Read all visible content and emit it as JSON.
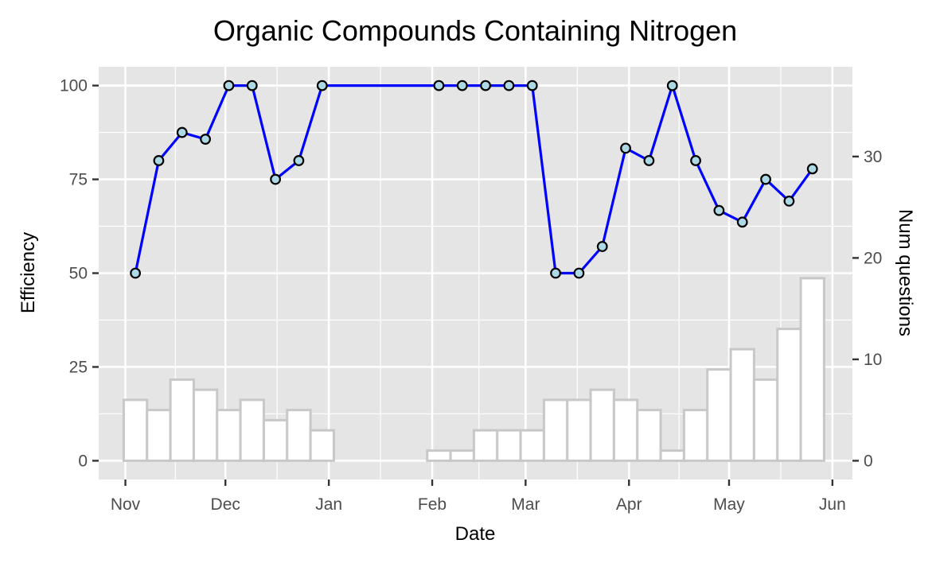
{
  "chart_data": {
    "type": "line+bar",
    "title": "Organic Compounds Containing Nitrogen",
    "xlabel": "Date",
    "ylabel_left": "Efficiency",
    "ylabel_right": "Num questions",
    "x_ticks": [
      "Nov",
      "Dec",
      "Jan",
      "Feb",
      "Mar",
      "Apr",
      "May",
      "Jun"
    ],
    "x_tick_dates": [
      "2016-11-01",
      "2016-12-01",
      "2017-01-01",
      "2017-02-01",
      "2017-03-01",
      "2017-04-01",
      "2017-05-01",
      "2017-06-01"
    ],
    "x_range": [
      "2016-10-24",
      "2017-06-07"
    ],
    "y_left_ticks": [
      0,
      25,
      50,
      75,
      100
    ],
    "y_left_range": [
      -5,
      105
    ],
    "y_right_ticks": [
      0,
      10,
      20,
      30
    ],
    "y_right_range": [
      -1.85,
      38.85
    ],
    "grid": true,
    "colors": {
      "panel": "#e5e5e5",
      "grid": "#ffffff",
      "line": "#0000ff",
      "point_fill": "#add8e6",
      "point_stroke": "#000000",
      "bar_fill": "#ffffff",
      "bar_stroke": "#c8c8c8"
    },
    "series": [
      {
        "type": "line",
        "axis": "left",
        "points": [
          {
            "x": "2016-11-04",
            "y": 50
          },
          {
            "x": "2016-11-11",
            "y": 80
          },
          {
            "x": "2016-11-18",
            "y": 87.5
          },
          {
            "x": "2016-11-25",
            "y": 85.7
          },
          {
            "x": "2016-12-02",
            "y": 100
          },
          {
            "x": "2016-12-09",
            "y": 100
          },
          {
            "x": "2016-12-16",
            "y": 75
          },
          {
            "x": "2016-12-23",
            "y": 80
          },
          {
            "x": "2016-12-30",
            "y": 100
          },
          {
            "x": "2017-02-03",
            "y": 100
          },
          {
            "x": "2017-02-10",
            "y": 100
          },
          {
            "x": "2017-02-17",
            "y": 100
          },
          {
            "x": "2017-02-24",
            "y": 100
          },
          {
            "x": "2017-03-03",
            "y": 100
          },
          {
            "x": "2017-03-10",
            "y": 50
          },
          {
            "x": "2017-03-17",
            "y": 50
          },
          {
            "x": "2017-03-24",
            "y": 57.1
          },
          {
            "x": "2017-03-31",
            "y": 83.3
          },
          {
            "x": "2017-04-07",
            "y": 80
          },
          {
            "x": "2017-04-14",
            "y": 100
          },
          {
            "x": "2017-04-21",
            "y": 80
          },
          {
            "x": "2017-04-28",
            "y": 66.7
          },
          {
            "x": "2017-05-05",
            "y": 63.6
          },
          {
            "x": "2017-05-12",
            "y": 75
          },
          {
            "x": "2017-05-19",
            "y": 69.2
          },
          {
            "x": "2017-05-26",
            "y": 77.8
          }
        ]
      },
      {
        "type": "bar",
        "axis": "right",
        "points": [
          {
            "x": "2016-11-04",
            "y": 6
          },
          {
            "x": "2016-11-11",
            "y": 5
          },
          {
            "x": "2016-11-18",
            "y": 8
          },
          {
            "x": "2016-11-25",
            "y": 7
          },
          {
            "x": "2016-12-02",
            "y": 5
          },
          {
            "x": "2016-12-09",
            "y": 6
          },
          {
            "x": "2016-12-16",
            "y": 4
          },
          {
            "x": "2016-12-23",
            "y": 5
          },
          {
            "x": "2016-12-30",
            "y": 3
          },
          {
            "x": "2017-02-03",
            "y": 1
          },
          {
            "x": "2017-02-10",
            "y": 1
          },
          {
            "x": "2017-02-17",
            "y": 3
          },
          {
            "x": "2017-02-24",
            "y": 3
          },
          {
            "x": "2017-03-03",
            "y": 3
          },
          {
            "x": "2017-03-10",
            "y": 6
          },
          {
            "x": "2017-03-17",
            "y": 6
          },
          {
            "x": "2017-03-24",
            "y": 7
          },
          {
            "x": "2017-03-31",
            "y": 6
          },
          {
            "x": "2017-04-07",
            "y": 5
          },
          {
            "x": "2017-04-14",
            "y": 1
          },
          {
            "x": "2017-04-21",
            "y": 5
          },
          {
            "x": "2017-04-28",
            "y": 9
          },
          {
            "x": "2017-05-05",
            "y": 11
          },
          {
            "x": "2017-05-12",
            "y": 8
          },
          {
            "x": "2017-05-19",
            "y": 13
          },
          {
            "x": "2017-05-26",
            "y": 18
          }
        ]
      }
    ]
  }
}
